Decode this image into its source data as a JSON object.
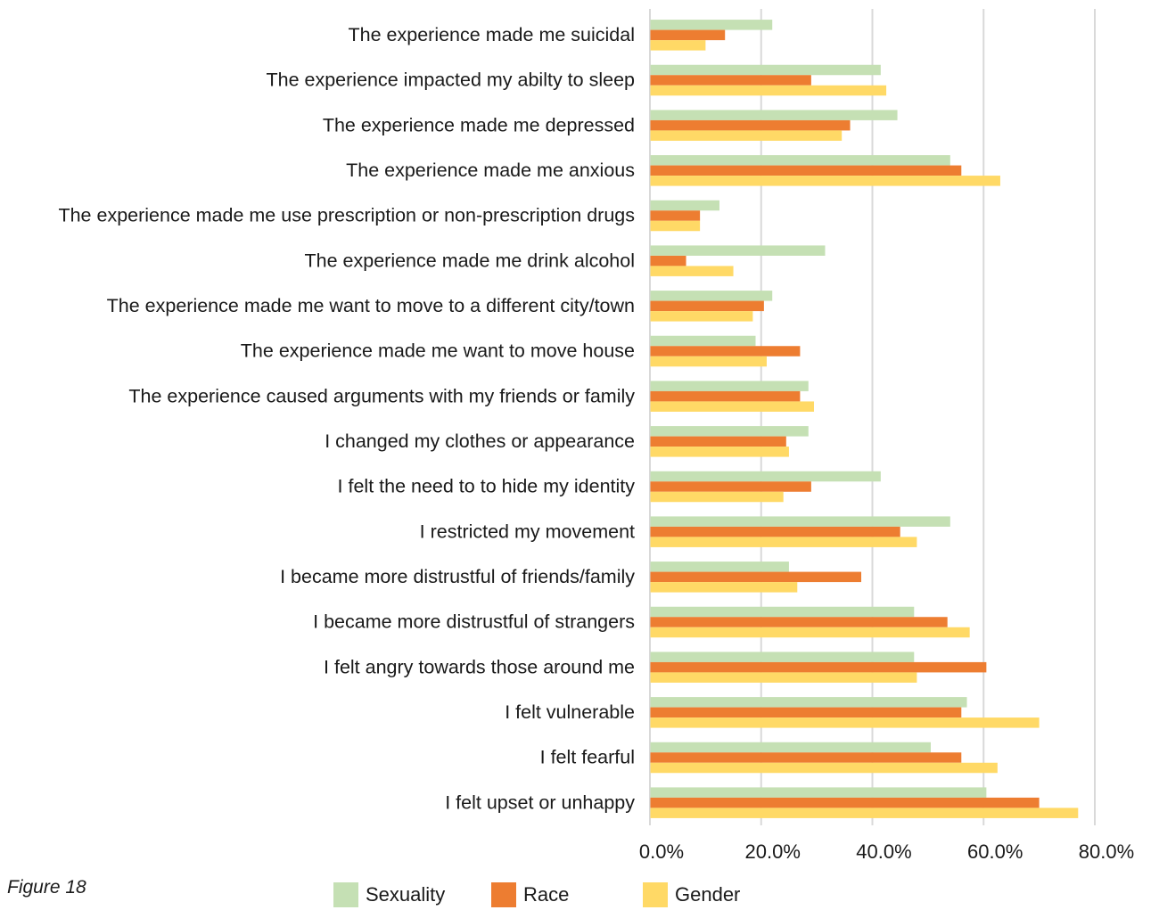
{
  "caption": "Figure 18",
  "chart_data": {
    "type": "bar",
    "orientation": "horizontal",
    "categories": [
      "The experience made me suicidal",
      "The experience impacted my abilty to sleep",
      "The experience made me depressed",
      "The experience made me anxious",
      "The experience made me  use  prescription or non-prescription drugs",
      "The experience made me drink alcohol",
      "The experience made me want to move to a different city/town",
      "The experience made me want to move house",
      "The experience caused arguments with my friends or family",
      "I changed my clothes or appearance",
      "I felt the need to to hide my identity",
      "I restricted my movement",
      "I became more distrustful of friends/family",
      "I became more distrustful of strangers",
      "I felt angry towards those around me",
      "I felt vulnerable",
      "I felt fearful",
      "I felt upset or unhappy"
    ],
    "series": [
      {
        "name": "Sexuality",
        "color": "#c5e0b4",
        "values": [
          22.0,
          41.5,
          44.5,
          54.0,
          12.5,
          31.5,
          22.0,
          19.0,
          28.5,
          28.5,
          41.5,
          54.0,
          25.0,
          47.5,
          47.5,
          57.0,
          50.5,
          60.5
        ]
      },
      {
        "name": "Race",
        "color": "#ed7d31",
        "values": [
          13.5,
          29.0,
          36.0,
          56.0,
          9.0,
          6.5,
          20.5,
          27.0,
          27.0,
          24.5,
          29.0,
          45.0,
          38.0,
          53.5,
          60.5,
          56.0,
          56.0,
          70.0
        ]
      },
      {
        "name": "Gender",
        "color": "#ffd966",
        "values": [
          10.0,
          42.5,
          34.5,
          63.0,
          9.0,
          15.0,
          18.5,
          21.0,
          29.5,
          25.0,
          24.0,
          48.0,
          26.5,
          57.5,
          48.0,
          70.0,
          62.5,
          77.0
        ]
      }
    ],
    "xlim": [
      0,
      80
    ],
    "xticks": [
      "0.0%",
      "20.0%",
      "40.0%",
      "60.0%",
      "80.0%"
    ],
    "grid": true,
    "legend_position": "bottom"
  }
}
